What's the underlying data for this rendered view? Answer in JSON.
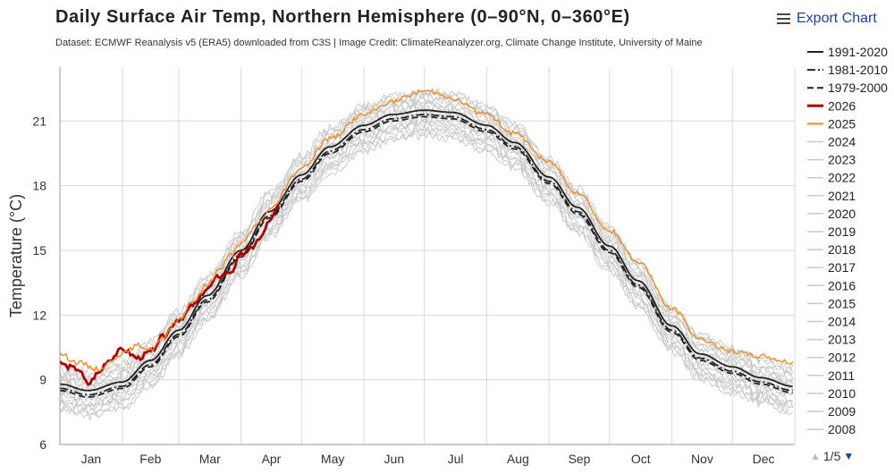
{
  "header": {
    "title": "Daily Surface Air Temp, Northern Hemisphere (0–90°N, 0–360°E)",
    "subtitle": "Dataset: ECMWF Reanalysis v5 (ERA5) downloaded from C3S | Image Credit: ClimateReanalyzer.org, Climate Change Institute, University of Maine"
  },
  "toolbar": {
    "export_label": "Export Chart",
    "export_icon": "hamburger-menu-icon"
  },
  "pager": {
    "text": "1/5",
    "up_icon": "triangle-up-icon",
    "down_icon": "triangle-down-icon"
  },
  "colors": {
    "y2026": "#b00000",
    "y2025": "#f28a1c",
    "climatology": "#222222",
    "past_years": "#c8c8c8",
    "accent": "#1a3fa8"
  },
  "chart_data": {
    "type": "line",
    "title": "Daily Surface Air Temp, Northern Hemisphere (0–90°N, 0–360°E)",
    "ylabel": "Temperature (°C)",
    "xlabel": "",
    "ylim": [
      6,
      23.5
    ],
    "xlim": [
      1,
      366
    ],
    "grid": true,
    "legend_position": "right",
    "yticks": [
      6,
      9,
      12,
      15,
      18,
      21
    ],
    "month_labels": [
      "Jan",
      "Feb",
      "Mar",
      "Apr",
      "May",
      "Jun",
      "Jul",
      "Aug",
      "Sep",
      "Oct",
      "Nov",
      "Dec"
    ],
    "series": [
      {
        "name": "1991-2020",
        "style": "solid",
        "color": "#222222",
        "x": [
          1,
          15,
          32,
          46,
          60,
          74,
          91,
          105,
          121,
          135,
          152,
          166,
          182,
          196,
          213,
          227,
          244,
          258,
          274,
          288,
          305,
          319,
          335,
          349,
          365
        ],
        "y": [
          8.8,
          8.5,
          8.9,
          9.9,
          11.3,
          12.9,
          15.0,
          16.8,
          18.5,
          19.8,
          20.8,
          21.3,
          21.5,
          21.4,
          20.8,
          20.0,
          18.4,
          17.0,
          15.2,
          13.6,
          11.5,
          10.2,
          9.6,
          9.1,
          8.7
        ]
      },
      {
        "name": "1981-2010",
        "style": "dashdot",
        "color": "#222222",
        "x": [
          1,
          15,
          32,
          46,
          60,
          74,
          91,
          105,
          121,
          135,
          152,
          166,
          182,
          196,
          213,
          227,
          244,
          258,
          274,
          288,
          305,
          319,
          335,
          349,
          365
        ],
        "y": [
          8.6,
          8.3,
          8.7,
          9.7,
          11.1,
          12.7,
          14.8,
          16.6,
          18.3,
          19.6,
          20.6,
          21.1,
          21.3,
          21.2,
          20.6,
          19.8,
          18.2,
          16.8,
          15.0,
          13.4,
          11.3,
          10.0,
          9.4,
          8.9,
          8.5
        ]
      },
      {
        "name": "1979-2000",
        "style": "dashed",
        "color": "#222222",
        "x": [
          1,
          15,
          32,
          46,
          60,
          74,
          91,
          105,
          121,
          135,
          152,
          166,
          182,
          196,
          213,
          227,
          244,
          258,
          274,
          288,
          305,
          319,
          335,
          349,
          365
        ],
        "y": [
          8.5,
          8.2,
          8.6,
          9.6,
          11.0,
          12.6,
          14.7,
          16.5,
          18.2,
          19.5,
          20.5,
          21.0,
          21.2,
          21.1,
          20.5,
          19.7,
          18.1,
          16.7,
          14.9,
          13.3,
          11.2,
          9.9,
          9.3,
          8.8,
          8.4
        ]
      },
      {
        "name": "2026",
        "style": "solid",
        "color": "#b00000",
        "x": [
          1,
          5,
          10,
          15,
          20,
          25,
          32,
          40,
          46,
          52,
          60,
          68,
          74,
          80,
          86,
          91,
          96,
          100,
          105,
          110
        ],
        "y": [
          9.8,
          9.6,
          9.5,
          8.8,
          9.3,
          9.9,
          10.4,
          10.0,
          10.3,
          11.0,
          11.8,
          12.5,
          13.2,
          13.8,
          14.0,
          14.8,
          15.1,
          15.5,
          16.3,
          17.1
        ]
      },
      {
        "name": "2025",
        "style": "solid",
        "color": "#f28a1c",
        "x": [
          1,
          10,
          20,
          32,
          40,
          46,
          52,
          60,
          68,
          74,
          80,
          86,
          91,
          100,
          105,
          121,
          135,
          152,
          166,
          182,
          190,
          196,
          213,
          227,
          244,
          258,
          274,
          288,
          305,
          319,
          335,
          349,
          365
        ],
        "y": [
          10.2,
          9.8,
          9.5,
          10.2,
          10.6,
          10.4,
          10.9,
          11.8,
          12.7,
          13.4,
          14.1,
          14.8,
          15.3,
          16.3,
          16.9,
          18.8,
          20.2,
          21.3,
          21.9,
          22.4,
          22.3,
          22.0,
          21.3,
          20.4,
          19.1,
          17.7,
          15.9,
          14.5,
          12.3,
          10.9,
          10.3,
          10.1,
          9.8
        ]
      },
      {
        "name": "2024"
      },
      {
        "name": "2023"
      },
      {
        "name": "2022"
      },
      {
        "name": "2021"
      },
      {
        "name": "2020"
      },
      {
        "name": "2019"
      },
      {
        "name": "2018"
      },
      {
        "name": "2017"
      },
      {
        "name": "2016"
      },
      {
        "name": "2015"
      },
      {
        "name": "2014"
      },
      {
        "name": "2013"
      },
      {
        "name": "2012"
      },
      {
        "name": "2011"
      },
      {
        "name": "2010"
      },
      {
        "name": "2009"
      },
      {
        "name": "2008"
      }
    ]
  }
}
